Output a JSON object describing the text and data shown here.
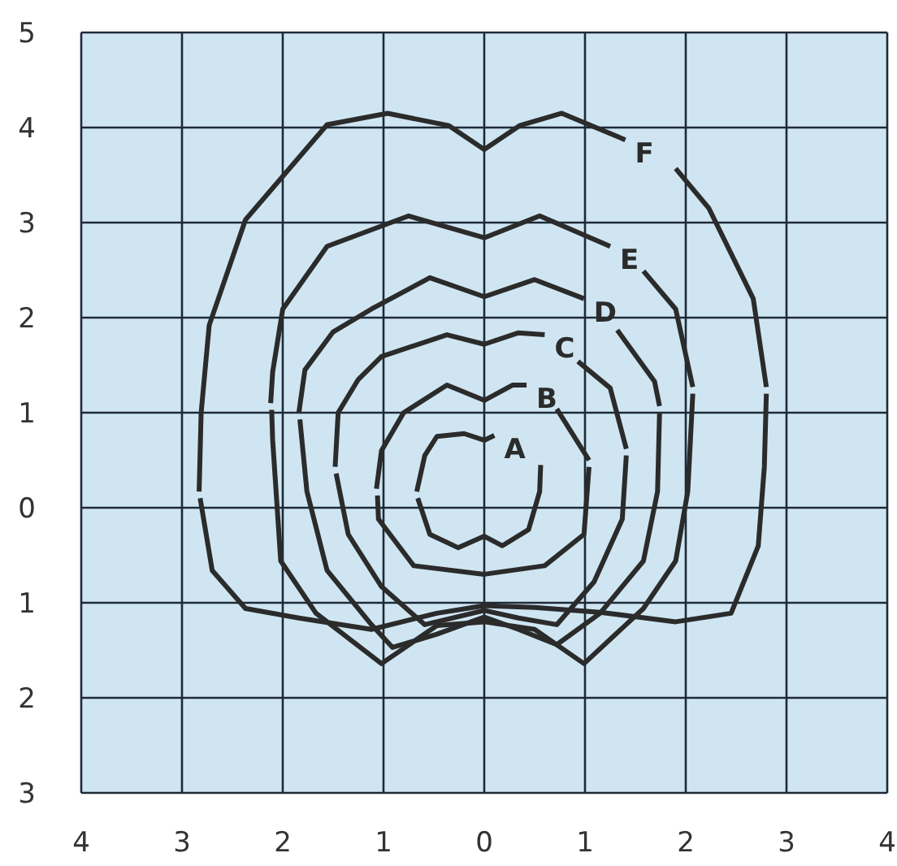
{
  "chart_data": {
    "type": "line",
    "xlim": [
      -4,
      4
    ],
    "ylim": [
      -3,
      5
    ],
    "xticks": [
      {
        "value": -4,
        "label": "4"
      },
      {
        "value": -3,
        "label": "3"
      },
      {
        "value": -2,
        "label": "2"
      },
      {
        "value": -1,
        "label": "1"
      },
      0,
      1,
      2,
      3,
      4
    ],
    "yticks": [
      {
        "value": -3,
        "label": "3"
      },
      {
        "value": -2,
        "label": "2"
      },
      {
        "value": -1,
        "label": "1"
      },
      0,
      1,
      2,
      3,
      4,
      5
    ],
    "grid": true,
    "marker": "none",
    "line_style": "solid",
    "legend": false,
    "series": [
      {
        "name": "A",
        "color": "#2b2b2b",
        "x": [
          -0.67,
          -0.59,
          -0.47,
          -0.2,
          0,
          0.1
        ],
        "values": [
          0.17,
          0.55,
          0.75,
          0.78,
          0.71,
          0.76
        ]
      },
      {
        "color": "#2b2b2b",
        "x": [
          -0.66,
          -0.54,
          -0.26,
          0,
          0.18,
          0.44,
          0.55,
          0.56
        ],
        "values": [
          0.1,
          -0.28,
          -0.42,
          -0.3,
          -0.4,
          -0.23,
          0.17,
          0.45
        ]
      },
      {
        "name": "B",
        "color": "#2b2b2b",
        "x": [
          -1.07,
          -1.02,
          -0.8,
          -0.37,
          0,
          0.28,
          0.42
        ],
        "values": [
          0.2,
          0.6,
          1.0,
          1.29,
          1.13,
          1.29,
          1.29
        ]
      },
      {
        "color": "#2b2b2b",
        "x": [
          -1.06,
          -1.05,
          -0.7,
          0,
          0.6,
          0.99,
          1.04
        ],
        "values": [
          0.13,
          -0.12,
          -0.61,
          -0.7,
          -0.61,
          -0.28,
          0.43
        ]
      },
      {
        "color": "#2b2b2b",
        "x": [
          0.72,
          1.04
        ],
        "values": [
          1.04,
          0.5
        ]
      },
      {
        "name": "C",
        "color": "#2b2b2b",
        "x": [
          -1.48,
          -1.45,
          -1.25,
          -1.02,
          -0.37,
          0,
          0.34,
          0.6
        ],
        "values": [
          0.43,
          1.0,
          1.35,
          1.59,
          1.82,
          1.72,
          1.84,
          1.82
        ]
      },
      {
        "color": "#2b2b2b",
        "x": [
          -1.47,
          -1.35,
          -1.02,
          -0.59,
          0,
          0.34,
          0.72,
          1.09,
          1.37,
          1.41
        ],
        "values": [
          0.36,
          -0.28,
          -0.83,
          -1.23,
          -1.08,
          -1.16,
          -1.23,
          -0.78,
          -0.12,
          0.55
        ]
      },
      {
        "color": "#2b2b2b",
        "x": [
          0.93,
          1.25,
          1.41
        ],
        "values": [
          1.54,
          1.26,
          0.62
        ]
      },
      {
        "name": "D",
        "color": "#2b2b2b",
        "x": [
          -1.84,
          -1.78,
          -1.5,
          -1.12,
          -0.54,
          0,
          0.5,
          0.99
        ],
        "values": [
          1.0,
          1.45,
          1.85,
          2.09,
          2.42,
          2.22,
          2.4,
          2.2
        ]
      },
      {
        "color": "#2b2b2b",
        "x": [
          -1.83,
          -1.76,
          -1.56,
          -1.12,
          -0.91,
          -0.47,
          0,
          0.34,
          0.72,
          1.15,
          1.58,
          1.72,
          1.74
        ],
        "values": [
          0.93,
          0.17,
          -0.66,
          -1.23,
          -1.47,
          -1.33,
          -1.15,
          -1.28,
          -1.44,
          -1.11,
          -0.56,
          0.17,
          1.0
        ]
      },
      {
        "color": "#2b2b2b",
        "x": [
          1.32,
          1.69,
          1.74
        ],
        "values": [
          1.87,
          1.33,
          1.07
        ]
      },
      {
        "name": "E",
        "color": "#2b2b2b",
        "x": [
          -2.12,
          -2.1,
          -2.0,
          -1.56,
          -0.75,
          0,
          0.55,
          1.25
        ],
        "values": [
          1.1,
          1.43,
          2.09,
          2.75,
          3.07,
          2.84,
          3.07,
          2.75
        ]
      },
      {
        "color": "#2b2b2b",
        "x": [
          -2.11,
          -2.1,
          -2.02,
          -1.67,
          -1.02,
          -0.47,
          0,
          0.5,
          0.99,
          1.58,
          1.9,
          2.02,
          2.07
        ],
        "values": [
          1.03,
          0.71,
          -0.56,
          -1.11,
          -1.64,
          -1.24,
          -1.2,
          -1.28,
          -1.64,
          -1.06,
          -0.56,
          0.17,
          1.2
        ]
      },
      {
        "color": "#2b2b2b",
        "x": [
          1.58,
          1.9,
          2.07
        ],
        "values": [
          2.49,
          2.09,
          1.27
        ]
      },
      {
        "name": "F",
        "color": "#2b2b2b",
        "x": [
          -2.83,
          -2.81,
          -2.73,
          -2.37,
          -1.56,
          -0.96,
          -0.35,
          0,
          0.35,
          0.77,
          1.4
        ],
        "values": [
          0.17,
          1.0,
          1.92,
          3.03,
          4.03,
          4.15,
          4.02,
          3.77,
          4.02,
          4.15,
          3.87
        ]
      },
      {
        "color": "#2b2b2b",
        "x": [
          -2.82,
          -2.7,
          -2.37,
          -1.84,
          -1.12,
          -0.47,
          0,
          0.5,
          1.15,
          1.9,
          2.45,
          2.72,
          2.78,
          2.8
        ],
        "values": [
          0.1,
          -0.66,
          -1.06,
          -1.16,
          -1.28,
          -1.11,
          -1.03,
          -1.05,
          -1.1,
          -1.2,
          -1.11,
          -0.4,
          0.43,
          1.2
        ]
      },
      {
        "color": "#2b2b2b",
        "x": [
          1.9,
          2.23,
          2.67,
          2.8
        ],
        "values": [
          3.57,
          3.15,
          2.2,
          1.27
        ]
      }
    ]
  }
}
